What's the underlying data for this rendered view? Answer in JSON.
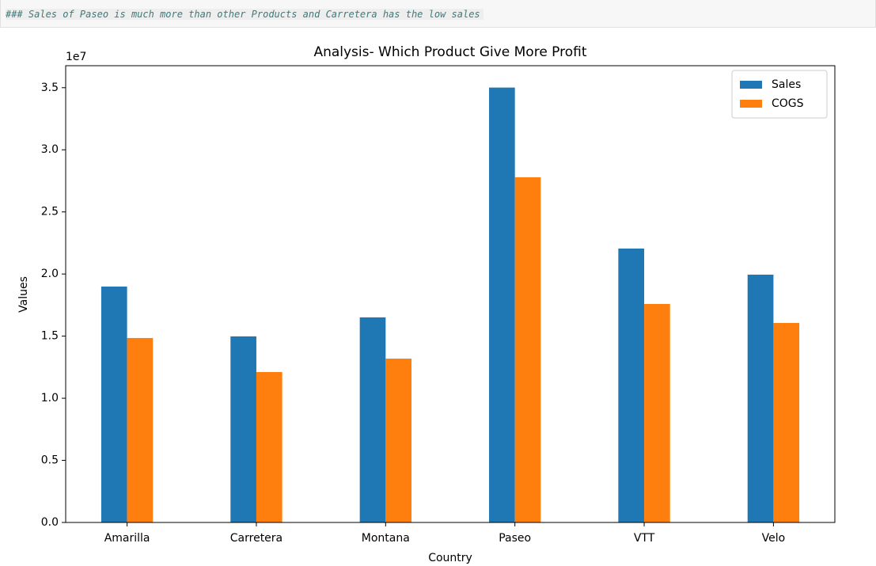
{
  "markdown_cell": {
    "text": "### Sales of Paseo is much more than other Products and Carretera has the low sales"
  },
  "chart_data": {
    "type": "bar",
    "title": "Analysis- Which Product Give More Profit",
    "x_label": "Country",
    "y_label": "Values",
    "y_offset_label": "1e7",
    "categories": [
      "Amarilla",
      "Carretera",
      "Montana",
      "Paseo",
      "VTT",
      "Velo"
    ],
    "series": [
      {
        "name": "Sales",
        "color": "#1f77b4",
        "values": [
          18990000,
          14980000,
          16510000,
          35010000,
          22050000,
          19950000
        ]
      },
      {
        "name": "COGS",
        "color": "#ff7f0e",
        "values": [
          14850000,
          12110000,
          13190000,
          27790000,
          17590000,
          16060000
        ]
      }
    ],
    "ylim": [
      0,
      36770000
    ],
    "yticks": [
      {
        "value": 0,
        "label": "0.0"
      },
      {
        "value": 5000000,
        "label": "0.5"
      },
      {
        "value": 10000000,
        "label": "1.0"
      },
      {
        "value": 15000000,
        "label": "1.5"
      },
      {
        "value": 20000000,
        "label": "2.0"
      },
      {
        "value": 25000000,
        "label": "2.5"
      },
      {
        "value": 30000000,
        "label": "3.0"
      },
      {
        "value": 35000000,
        "label": "3.5"
      }
    ],
    "grid": false,
    "legend": "upper right"
  }
}
